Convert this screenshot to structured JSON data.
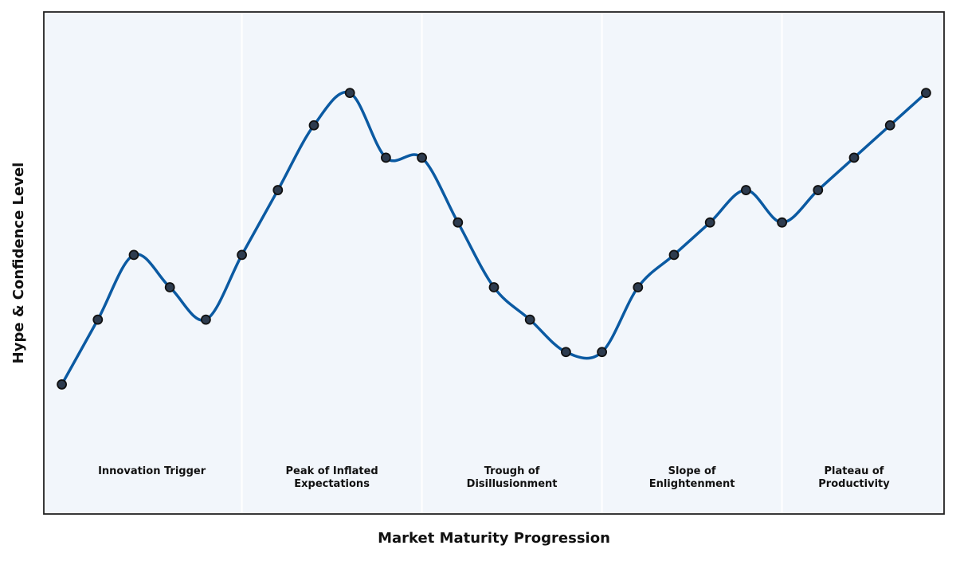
{
  "chart_data": {
    "type": "line",
    "title": "",
    "xlabel": "Market Maturity Progression",
    "ylabel": "Hype & Confidence Level",
    "x_ticks_visible": false,
    "y_ticks_visible": false,
    "xlim": [
      -0.5,
      24.5
    ],
    "ylim": [
      -4,
      11.5
    ],
    "grid": false,
    "legend": "none",
    "phases": [
      {
        "label": "Innovation Trigger",
        "start": -0.5,
        "end": 5
      },
      {
        "label": "Peak of Inflated\nExpectations",
        "start": 5,
        "end": 10
      },
      {
        "label": "Trough of\nDisillusionment",
        "start": 10,
        "end": 15
      },
      {
        "label": "Slope of\nEnlightenment",
        "start": 15,
        "end": 20
      },
      {
        "label": "Plateau of\nProductivity",
        "start": 20,
        "end": 24.5
      }
    ],
    "series": [
      {
        "x": [
          0,
          1,
          2,
          3,
          4,
          5,
          6,
          7,
          8,
          9,
          10,
          11,
          12,
          13,
          14,
          15,
          16,
          17,
          18,
          19,
          20,
          21,
          22,
          23,
          24
        ],
        "values": [
          0,
          2,
          4,
          3,
          2,
          4,
          6,
          8,
          9,
          7,
          7,
          5,
          3,
          2,
          1,
          1,
          3,
          4,
          5,
          6,
          5,
          6,
          7,
          8,
          9
        ]
      }
    ],
    "colors": {
      "line": "#0b5aa2",
      "marker_fill": "#2d3b4e",
      "marker_edge": "#111111",
      "plot_background": "#f2f6fb",
      "phase_divider": "#ffffff",
      "frame": "#222222"
    }
  }
}
